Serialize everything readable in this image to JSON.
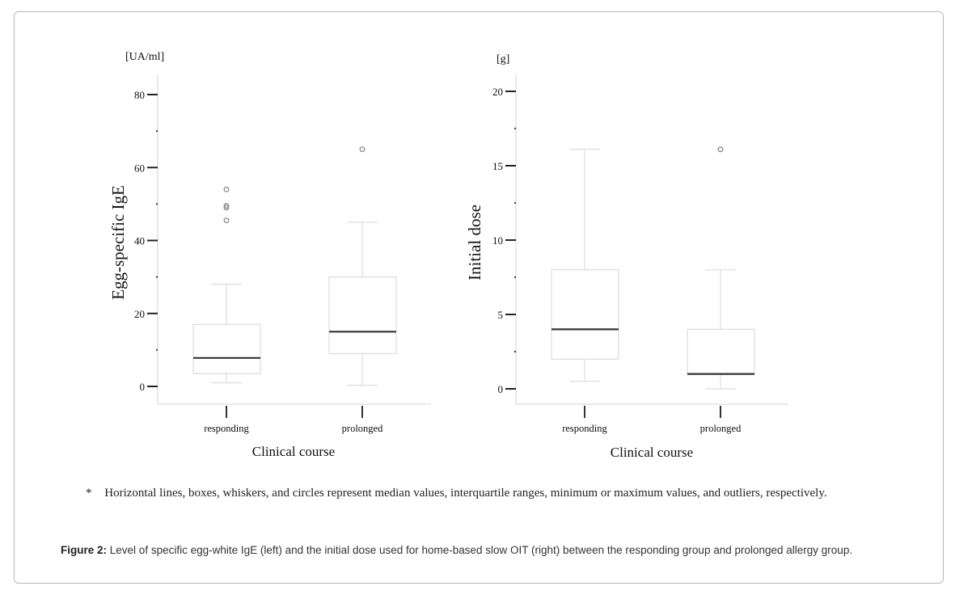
{
  "chart_data": [
    {
      "type": "box",
      "unit_label": "[UA/ml]",
      "ylabel": "Egg-specific IgE",
      "xlabel": "Clinical course",
      "ylim": [
        0,
        80
      ],
      "yticks": [
        0,
        20,
        40,
        60,
        80
      ],
      "yminor": [
        10,
        30,
        50,
        70
      ],
      "categories": [
        "responding",
        "prolonged"
      ],
      "series": [
        {
          "name": "responding",
          "min": 1,
          "q1": 3.5,
          "median": 7.8,
          "q3": 17,
          "max": 28,
          "outliers": [
            45.5,
            49,
            49.5,
            54
          ]
        },
        {
          "name": "prolonged",
          "min": 0.3,
          "q1": 9,
          "median": 15,
          "q3": 30,
          "max": 45,
          "outliers": [
            65
          ]
        }
      ]
    },
    {
      "type": "box",
      "unit_label": "[g]",
      "ylabel": "Initial dose",
      "xlabel": "Clinical course",
      "ylim": [
        0,
        20
      ],
      "yticks": [
        0,
        5,
        10,
        15,
        20
      ],
      "yminor": [
        2.5,
        7.5,
        12.5,
        17.5
      ],
      "categories": [
        "responding",
        "prolonged"
      ],
      "series": [
        {
          "name": "responding",
          "min": 0.5,
          "q1": 2,
          "median": 4,
          "q3": 8,
          "max": 16.1,
          "outliers": []
        },
        {
          "name": "prolonged",
          "min": 0,
          "q1": 1,
          "median": 1,
          "q3": 4,
          "max": 8,
          "outliers": [
            16.1
          ]
        }
      ]
    }
  ],
  "note": {
    "marker": "*",
    "text": "Horizontal lines, boxes, whiskers, and circles represent median values, interquartile ranges, minimum or maximum values, and outliers, respectively."
  },
  "caption": {
    "label": "Figure 2:",
    "text": "Level of specific egg-white IgE (left) and the initial dose used for home-based slow OIT (right) between the responding group and prolonged allergy group."
  }
}
